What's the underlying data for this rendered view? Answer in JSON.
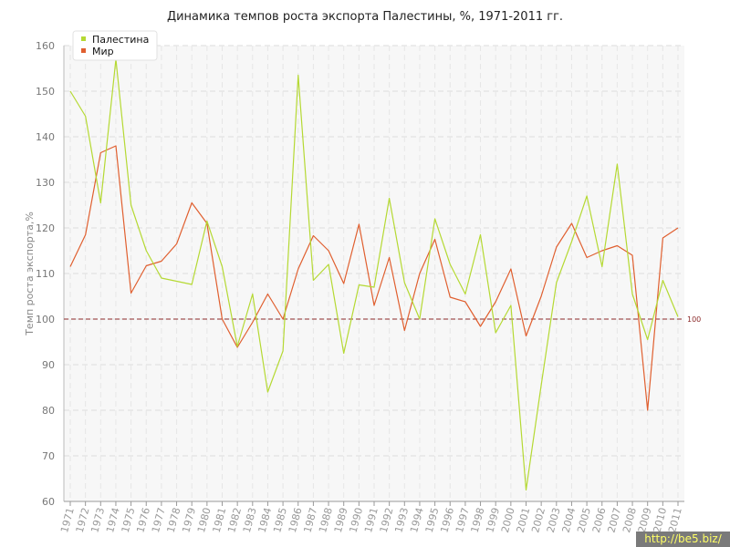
{
  "chart_data": {
    "type": "line",
    "title": "Динамика темпов роста экспорта Палестины, %, 1971-2011 гг.",
    "ylabel": "Темп роста экспорта,%",
    "xlabel": "",
    "ylim": [
      60,
      160
    ],
    "yticks": [
      60,
      70,
      80,
      90,
      100,
      110,
      120,
      130,
      140,
      150,
      160
    ],
    "categories": [
      "1971",
      "1972",
      "1973",
      "1974",
      "1975",
      "1976",
      "1977",
      "1978",
      "1979",
      "1980",
      "1981",
      "1982",
      "1983",
      "1984",
      "1985",
      "1986",
      "1987",
      "1988",
      "1989",
      "1990",
      "1991",
      "1992",
      "1993",
      "1994",
      "1995",
      "1996",
      "1997",
      "1998",
      "1999",
      "2000",
      "2001",
      "2002",
      "2003",
      "2004",
      "2005",
      "2006",
      "2007",
      "2008",
      "2009",
      "2010",
      "2011"
    ],
    "series": [
      {
        "name": "Палестина",
        "color": "#b5d933",
        "values": [
          150,
          144.5,
          125.5,
          157,
          125,
          115,
          109,
          108.3,
          107.6,
          121.5,
          111.5,
          94,
          105.5,
          84,
          93,
          153.5,
          108.5,
          112,
          92.5,
          107.5,
          107,
          126.5,
          108,
          100,
          122,
          112,
          105.5,
          118.5,
          97,
          103,
          62.5,
          85.5,
          108,
          117,
          127,
          111.5,
          134,
          105.5,
          95.5,
          108.5,
          100.5
        ]
      },
      {
        "name": "Мир",
        "color": "#e05f2f",
        "values": [
          111.5,
          118.5,
          136.5,
          138,
          105.7,
          111.7,
          112.7,
          116.5,
          125.5,
          121,
          100,
          93.8,
          99.3,
          105.5,
          100,
          111,
          118.3,
          115,
          107.8,
          120.8,
          103,
          113.5,
          97.5,
          110,
          117.5,
          104.8,
          103.8,
          98.4,
          103.8,
          111,
          96.3,
          105,
          115.8,
          121,
          113.5,
          115,
          116.1,
          114,
          80,
          117.8,
          120
        ]
      }
    ],
    "reference_line": {
      "value": 100,
      "label": "100",
      "color": "#8b2a2a",
      "style": "dashed"
    },
    "grid": true,
    "legend": "top-left"
  },
  "watermark": "http://be5.biz/"
}
